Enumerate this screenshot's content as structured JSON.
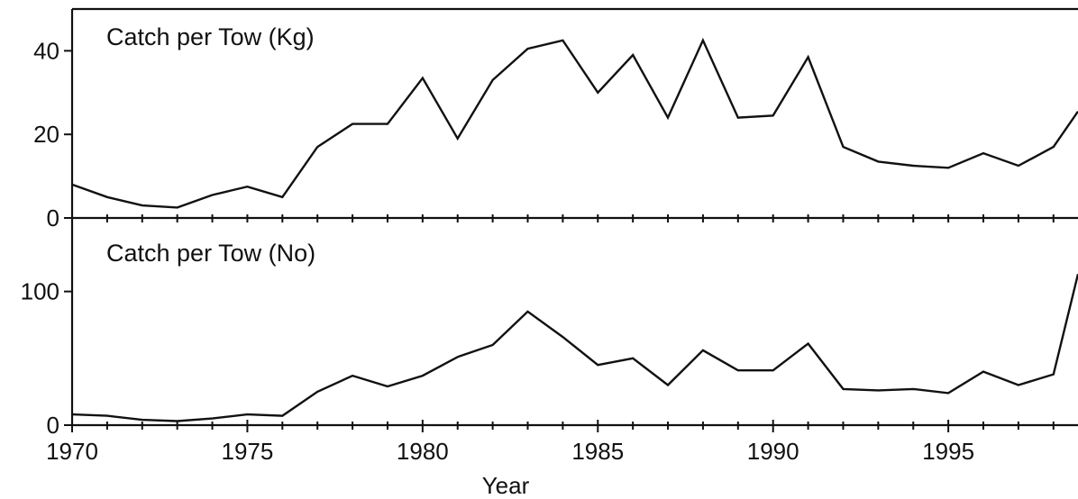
{
  "chart_data": [
    {
      "type": "line",
      "title": "Catch per Tow (Kg)",
      "xlabel": "",
      "ylabel": "",
      "xlim": [
        1970,
        1998.7
      ],
      "ylim": [
        0,
        50
      ],
      "y_ticks": [
        0,
        20,
        40
      ],
      "grid": false,
      "x": [
        1970,
        1971,
        1972,
        1973,
        1974,
        1975,
        1976,
        1977,
        1978,
        1979,
        1980,
        1981,
        1982,
        1983,
        1984,
        1985,
        1986,
        1987,
        1988,
        1989,
        1990,
        1991,
        1992,
        1993,
        1994,
        1995,
        1996,
        1997,
        1998,
        1998.7
      ],
      "series": [
        {
          "values": [
            8,
            5,
            3,
            2.5,
            5.5,
            7.5,
            5,
            17,
            22.5,
            22.5,
            33.5,
            19,
            33,
            40.5,
            42.5,
            30,
            39,
            24,
            42.5,
            24,
            24.5,
            38.5,
            17,
            13.5,
            12.5,
            12,
            15.5,
            12.5,
            17,
            25.5
          ]
        }
      ]
    },
    {
      "type": "line",
      "title": "Catch per Tow (No)",
      "xlabel": "Year",
      "ylabel": "",
      "xlim": [
        1970,
        1998.7
      ],
      "ylim": [
        0,
        155
      ],
      "y_ticks": [
        0,
        100
      ],
      "x_ticks": [
        1970,
        1975,
        1980,
        1985,
        1990,
        1995
      ],
      "grid": false,
      "x": [
        1970,
        1971,
        1972,
        1973,
        1974,
        1975,
        1976,
        1977,
        1978,
        1979,
        1980,
        1981,
        1982,
        1983,
        1984,
        1985,
        1986,
        1987,
        1988,
        1989,
        1990,
        1991,
        1992,
        1993,
        1994,
        1995,
        1996,
        1997,
        1998,
        1998.7
      ],
      "series": [
        {
          "values": [
            8,
            7,
            4,
            3,
            5,
            8,
            7,
            25,
            37,
            29,
            37,
            51,
            60,
            85,
            66,
            45,
            50,
            30,
            56,
            41,
            41,
            61,
            27,
            26,
            27,
            24,
            40,
            30,
            38,
            113
          ]
        }
      ]
    }
  ]
}
